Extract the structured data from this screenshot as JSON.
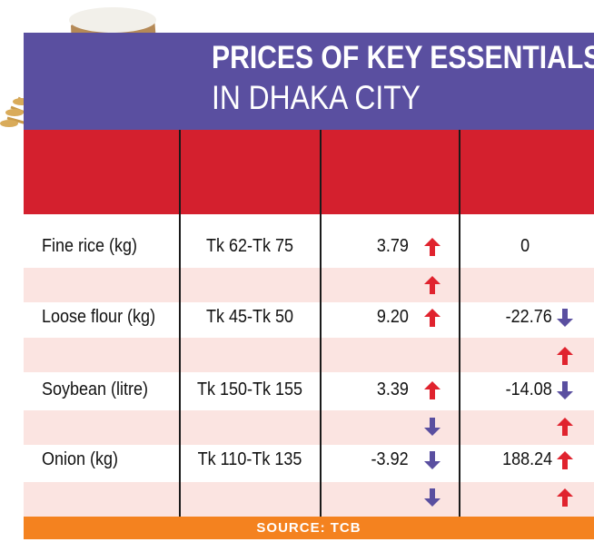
{
  "title": {
    "line1": "PRICES OF KEY ESSENTIALS",
    "line2": "IN DHAKA CITY"
  },
  "source": "SOURCE: TCB",
  "colors": {
    "title_band": "#5a4fa0",
    "header_band": "#d4202e",
    "row_band": "#fbe4e1",
    "source_band": "#f4821f",
    "up_arrow": "#e0232e",
    "down_arrow": "#5a4fa0"
  },
  "chart_data": {
    "type": "table",
    "rows": [
      {
        "item": "Fine rice (kg)",
        "price": "Tk 62-Tk 75",
        "change1": "3.79",
        "change1_dir": "up",
        "change2": "0",
        "change2_dir": "",
        "sub1_dir": "up",
        "sub2_dir": ""
      },
      {
        "item": "Loose flour (kg)",
        "price": "Tk 45-Tk 50",
        "change1": "9.20",
        "change1_dir": "up",
        "change2": "-22.76",
        "change2_dir": "down",
        "sub1_dir": "",
        "sub2_dir": "up"
      },
      {
        "item": "Soybean (litre)",
        "price": "Tk 150-Tk 155",
        "change1": "3.39",
        "change1_dir": "up",
        "change2": "-14.08",
        "change2_dir": "down",
        "sub1_dir": "down",
        "sub2_dir": "up"
      },
      {
        "item": "Onion (kg)",
        "price": "Tk 110-Tk 135",
        "change1": "-3.92",
        "change1_dir": "down",
        "change2": "188.24",
        "change2_dir": "up",
        "sub1_dir": "down",
        "sub2_dir": "up"
      }
    ]
  }
}
